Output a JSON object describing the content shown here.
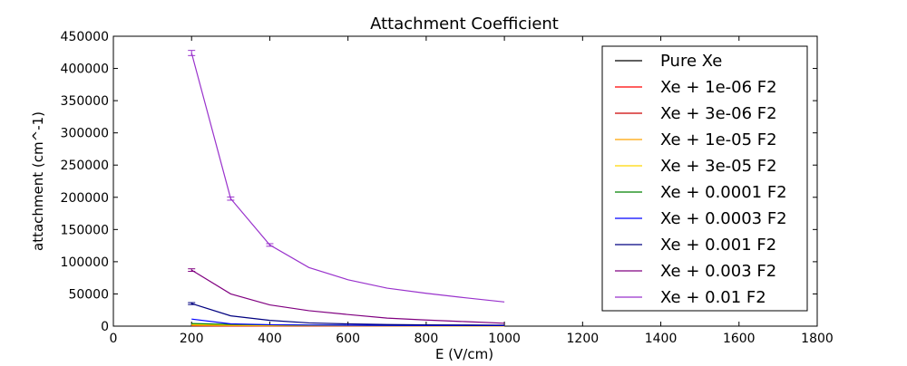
{
  "chart_data": {
    "type": "line",
    "title": "Attachment Coefficient",
    "xlabel": "E (V/cm)",
    "ylabel": "attachment (cm^-1)",
    "xlim": [
      0,
      1800
    ],
    "ylim": [
      0,
      450000
    ],
    "x_ticks": [
      0,
      200,
      400,
      600,
      800,
      1000,
      1200,
      1400,
      1600,
      1800
    ],
    "y_ticks": [
      0,
      50000,
      100000,
      150000,
      200000,
      250000,
      300000,
      350000,
      400000,
      450000
    ],
    "grid": false,
    "legend_position": "top-right",
    "x": [
      200,
      300,
      400,
      500,
      600,
      700,
      800,
      900,
      1000
    ],
    "series": [
      {
        "name": "Pure Xe",
        "color": "#000000",
        "values": [
          300,
          200,
          150,
          120,
          100,
          90,
          80,
          70,
          60
        ]
      },
      {
        "name": "Xe + 1e-06 F2",
        "color": "#ff0000",
        "values": [
          600,
          400,
          300,
          240,
          200,
          170,
          150,
          130,
          120
        ]
      },
      {
        "name": "Xe + 3e-06 F2",
        "color": "#cc0000",
        "values": [
          900,
          600,
          450,
          360,
          300,
          260,
          230,
          200,
          180
        ]
      },
      {
        "name": "Xe + 1e-05 F2",
        "color": "#ffa500",
        "values": [
          1500,
          1000,
          750,
          600,
          500,
          430,
          380,
          340,
          300
        ]
      },
      {
        "name": "Xe + 3e-05 F2",
        "color": "#ffd700",
        "values": [
          2500,
          1700,
          1300,
          1000,
          850,
          730,
          640,
          570,
          510
        ]
      },
      {
        "name": "Xe + 0.0001 F2",
        "color": "#008000",
        "values": [
          4000,
          2700,
          2000,
          1600,
          1350,
          1150,
          1000,
          900,
          800
        ]
      },
      {
        "name": "Xe + 0.0003 F2",
        "color": "#0000ff",
        "values": [
          11000,
          3500,
          2200,
          1700,
          1400,
          1200,
          1050,
          950,
          850
        ]
      },
      {
        "name": "Xe + 0.001 F2",
        "color": "#000080",
        "values": [
          35000,
          16000,
          9000,
          5000,
          3500,
          2500,
          2000,
          1800,
          1500
        ]
      },
      {
        "name": "Xe + 0.003 F2",
        "color": "#800080",
        "values": [
          87000,
          50000,
          33000,
          24000,
          18000,
          12500,
          9500,
          7000,
          4500
        ]
      },
      {
        "name": "Xe + 0.01 F2",
        "color": "#9932cc",
        "values": [
          424000,
          198000,
          126000,
          91000,
          72000,
          59000,
          51000,
          44000,
          37500
        ]
      }
    ],
    "error_bars": [
      {
        "series": "Xe + 0.01 F2",
        "x": [
          200,
          300,
          400
        ],
        "err": [
          4000,
          2500,
          2000
        ]
      },
      {
        "series": "Xe + 0.003 F2",
        "x": [
          200
        ],
        "err": [
          2000
        ]
      },
      {
        "series": "Xe + 0.001 F2",
        "x": [
          200
        ],
        "err": [
          1500
        ]
      }
    ]
  }
}
